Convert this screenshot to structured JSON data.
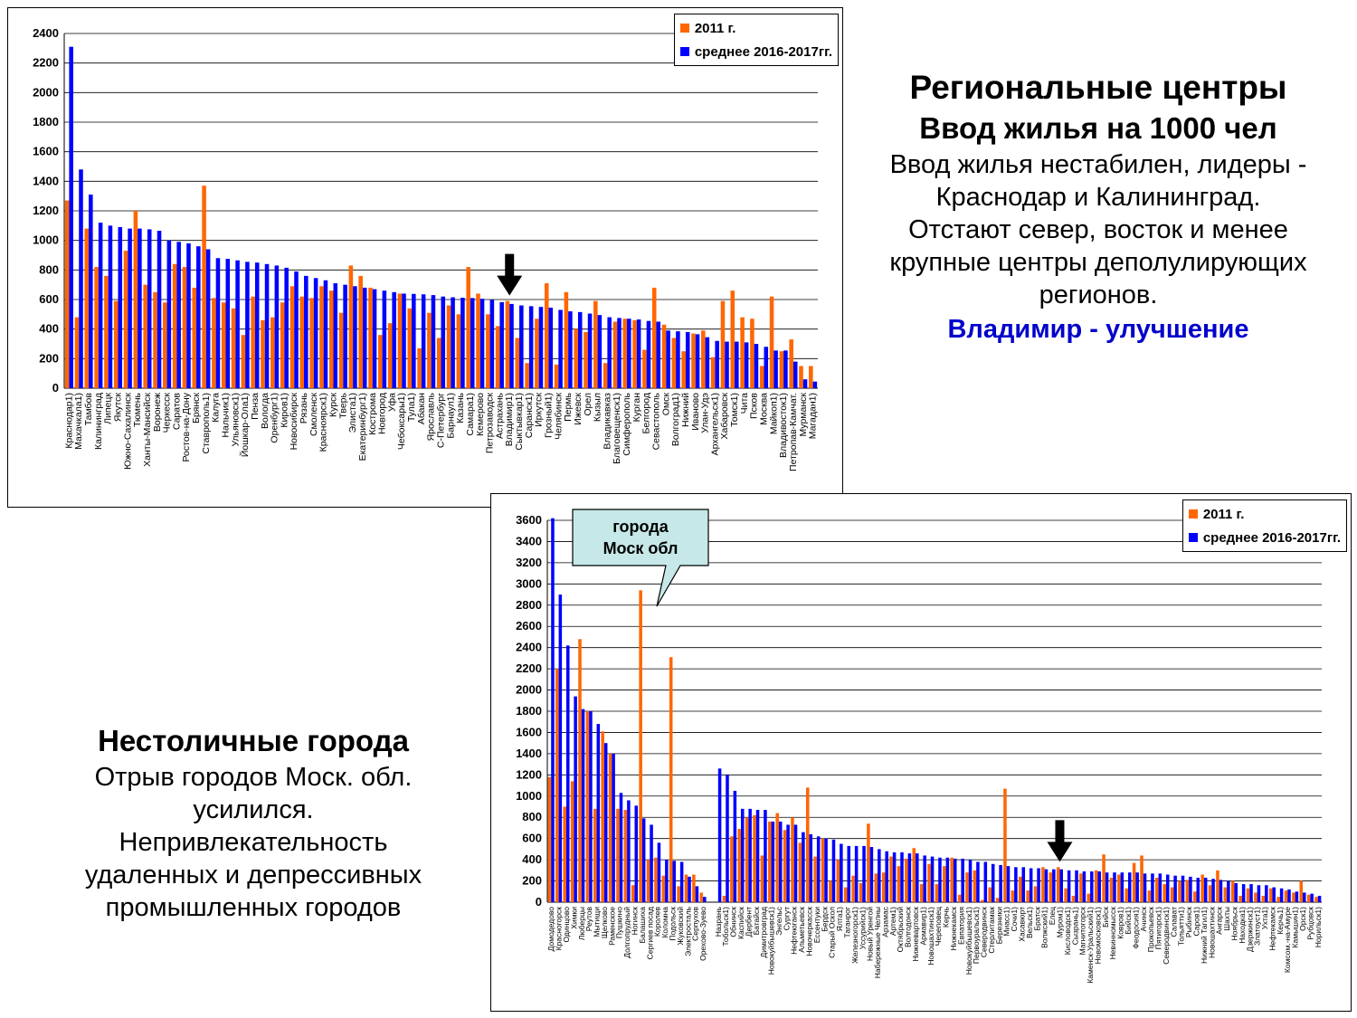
{
  "colors": {
    "series_2011": "#ff6600",
    "series_avg": "#0000ff",
    "callout_fill": "#c6e8e8",
    "highlight_text": "#0000cc"
  },
  "regional_text": {
    "title1": "Региональные центры",
    "title2": "Ввод жилья на 1000 чел",
    "lines": [
      "Ввод жилья нестабилен, лидеры -",
      "Краснодар и Калининград.",
      "Отстают север, восток и менее",
      "крупные центры деполулирующих",
      "регионов."
    ],
    "highlight": "Владимир - улучшение"
  },
  "noncapital_text": {
    "title": "Нестоличные города",
    "lines": [
      "Отрыв городов Моск. обл.",
      "усилился.",
      "Непривлекательность",
      "удаленных и депрессивных",
      "промышленных городов"
    ]
  },
  "callout": {
    "lines": [
      "города",
      "Моск обл"
    ]
  },
  "chart_data": [
    {
      "type": "bar",
      "categories": [
        "Краснодар1)",
        "Махачкала1)",
        "Тамбов",
        "Калининград",
        "Липецк",
        "Якутск",
        "Южно-Сахалинск",
        "Тюмень",
        "Ханты-Мансийск",
        "Воронеж",
        "Черкесск",
        "Саратов",
        "Ростов-на-Дону",
        "Брянск",
        "Ставрополь1)",
        "Калуга",
        "Нальчик1)",
        "Ульяновск1)",
        "Йошкар-Ола1)",
        "Пенза",
        "Вологда",
        "Оренбург1)",
        "Киров1)",
        "Новосибирск",
        "Рязань",
        "Смоленск",
        "Красноярск1)",
        "Курск",
        "Тверь",
        "Элиста1)",
        "Екатеринбург1)",
        "Кострома",
        "Новгород",
        "Уфа",
        "Чебоксары1)",
        "Тула1)",
        "Абакан",
        "Ярославль",
        "С-Петербург",
        "Барнаул1)",
        "Казань",
        "Самара1)",
        "Кемерово",
        "Петрозаводск",
        "Астрахань",
        "Владимир1)",
        "Сыктывкар1)",
        "Саранск1)",
        "Иркутск",
        "Грозный1)",
        "Челябинск",
        "Пермь",
        "Ижевск",
        "Орел",
        "Кызыл",
        "Владикавказ",
        "Благовещенск1)",
        "Симферополь",
        "Курган",
        "Белгород",
        "Севастополь",
        "Омск",
        "Волгоград1)",
        "Нижний",
        "Иваново",
        "Улан-Удэ",
        "Архангельск1)",
        "Хабаровск",
        "Томск1)",
        "Чита",
        "Псков",
        "Москва",
        "Майкоп1)",
        "Владивосток1)",
        "Петропав-Камчат.",
        "Мурманск",
        "Магадан1)"
      ],
      "series": [
        {
          "name": "2011 г.",
          "values": [
            1270,
            480,
            1080,
            820,
            760,
            590,
            930,
            1200,
            700,
            650,
            580,
            840,
            820,
            680,
            1370,
            610,
            580,
            540,
            360,
            620,
            460,
            480,
            580,
            690,
            620,
            610,
            690,
            660,
            510,
            830,
            760,
            680,
            360,
            440,
            640,
            540,
            270,
            510,
            340,
            560,
            500,
            820,
            640,
            500,
            420,
            590,
            340,
            170,
            470,
            710,
            160,
            650,
            400,
            380,
            590,
            170,
            450,
            470,
            460,
            260,
            680,
            430,
            340,
            250,
            370,
            390,
            210,
            590,
            660,
            480,
            470,
            150,
            620,
            250,
            330,
            150,
            150
          ],
          "dash": [
            "",
            "",
            "",
            "",
            "",
            "",
            "",
            "",
            "",
            "",
            "",
            "",
            "",
            "",
            "",
            "",
            "",
            "",
            "",
            "",
            "",
            "",
            "",
            "",
            "",
            "",
            "",
            "",
            "",
            "",
            "",
            "",
            "",
            "",
            "",
            "",
            "",
            "",
            "",
            "",
            "",
            "",
            "",
            "",
            "",
            "",
            "",
            "",
            "",
            "",
            "",
            "",
            "",
            "",
            "",
            "",
            "",
            "",
            "",
            "",
            "",
            "",
            "",
            "",
            "",
            "",
            "",
            "",
            "",
            "",
            "",
            "",
            "",
            "",
            "",
            "",
            ""
          ]
        },
        {
          "name": "среднее 2016-2017гг.",
          "values": [
            2310,
            1480,
            1310,
            1120,
            1100,
            1090,
            1080,
            1080,
            1075,
            1065,
            1000,
            990,
            980,
            960,
            940,
            880,
            875,
            865,
            855,
            850,
            840,
            830,
            815,
            790,
            760,
            745,
            730,
            710,
            700,
            690,
            680,
            670,
            660,
            650,
            640,
            638,
            635,
            630,
            620,
            615,
            612,
            610,
            605,
            598,
            582,
            570,
            560,
            555,
            550,
            545,
            530,
            520,
            515,
            505,
            495,
            480,
            475,
            470,
            465,
            455,
            450,
            390,
            385,
            380,
            365,
            345,
            320,
            315,
            315,
            310,
            300,
            280,
            255,
            255,
            180,
            60,
            45
          ]
        }
      ],
      "ylim": [
        0,
        2400
      ],
      "yticks": [
        0,
        200,
        400,
        600,
        800,
        1000,
        1200,
        1400,
        1600,
        1800,
        2000,
        2200,
        2400
      ],
      "legend": "top-right",
      "annotation": "arrow-down-at-Владимир1)"
    },
    {
      "type": "bar",
      "categories": [
        "Домодедово",
        "Красногорск",
        "Одинцово",
        "Химки",
        "Люберцы",
        "Реутов",
        "Мытищи",
        "Щелково",
        "Раменское",
        "Пушкино",
        "Долгопрудный",
        "Ногинск",
        "Балашиха",
        "Сергиев посад",
        "Королев",
        "Коломна",
        "Подольск",
        "Жуковский",
        "Электросталь",
        "Серпухов",
        "Орехово-Зуево",
        "",
        "Назрань",
        "Тобольск1)",
        "Обнинск",
        "Каспийск",
        "Дербент",
        "Батайск",
        "Димитровград",
        "Новокуйбышевск1)",
        "Энгельс",
        "Сургут",
        "Нефтеюганск",
        "Альметьевск",
        "Новочеркасск",
        "Ессентуки",
        "Бердск",
        "Старый Оскол",
        "Ялта1)",
        "Таганрог",
        "Железногорск1)",
        "Уссурийск1)",
        "Новый Уренгой",
        "Набережные Челны",
        "Арзамас",
        "Артем1)",
        "Октябрьский",
        "Волгодонск",
        "Нижневартовск",
        "Армавир1)",
        "Новошахтинск1)",
        "Череповец",
        "Керчь",
        "Нижнекамск",
        "Евпатория",
        "Новокуйбышевск1)",
        "Первоуральск1)",
        "Северодвинск",
        "Стерлитамак",
        "Березники",
        "Миасс1)",
        "Сочи1)",
        "Хасавюрт",
        "Вельск1)",
        "Братск",
        "Волжский1)",
        "Елец",
        "Муром1)",
        "Кисловодск1)",
        "Сызрань1)",
        "Магнитогорск",
        "Каменск-Уральский1)",
        "Новомосковск1)",
        "Бийск",
        "Невинномысск",
        "Ковров1)",
        "Бийск1)",
        "Феодосия1)",
        "Ачинск",
        "Прокопьевск",
        "Пятигорск1)",
        "Северодвинск1)",
        "Салават",
        "Тольятти1)",
        "Рыбинск",
        "Саров1)",
        "Нижний Тагил1)",
        "Новошахтинск",
        "Ангарск",
        "Шахты",
        "Ноябрьск",
        "Находка1)",
        "Дзержинск1)",
        "Златоуст1)",
        "Ухта1)",
        "Нефтекамск",
        "Керчь1)",
        "Комсом.-на-Амуре",
        "Камышин1)",
        "Орск1)",
        "Рубцовск",
        "Норильск1)"
      ],
      "series": [
        {
          "name": "2011 г.",
          "values": [
            1180,
            2200,
            900,
            1140,
            2480,
            1800,
            880,
            1610,
            1400,
            880,
            870,
            160,
            2940,
            400,
            420,
            250,
            2310,
            150,
            260,
            260,
            90,
            0,
            0,
            60,
            620,
            690,
            800,
            820,
            440,
            760,
            840,
            680,
            800,
            560,
            1080,
            430,
            600,
            200,
            400,
            140,
            250,
            180,
            740,
            270,
            280,
            430,
            340,
            410,
            510,
            170,
            360,
            170,
            340,
            420,
            70,
            280,
            300,
            20,
            140,
            40,
            1070,
            110,
            240,
            110,
            150,
            330,
            280,
            330,
            130,
            60,
            270,
            80,
            300,
            450,
            230,
            260,
            130,
            370,
            440,
            110,
            230,
            170,
            140,
            200,
            210,
            100,
            260,
            160,
            300,
            140,
            200,
            60,
            130,
            90,
            60,
            130,
            50,
            110,
            90,
            200,
            70,
            50
          ]
        },
        {
          "name": "среднее 2016-2017гг.",
          "values": [
            3620,
            2900,
            2420,
            1940,
            1820,
            1800,
            1680,
            1500,
            1400,
            1030,
            960,
            910,
            790,
            730,
            560,
            400,
            390,
            380,
            240,
            150,
            50,
            0,
            1260,
            1200,
            1050,
            880,
            880,
            870,
            870,
            760,
            760,
            730,
            730,
            660,
            640,
            620,
            600,
            590,
            550,
            530,
            530,
            530,
            520,
            500,
            480,
            470,
            470,
            460,
            460,
            440,
            430,
            420,
            420,
            410,
            410,
            400,
            380,
            380,
            360,
            350,
            340,
            330,
            330,
            320,
            320,
            310,
            310,
            310,
            300,
            300,
            290,
            290,
            290,
            280,
            280,
            280,
            280,
            280,
            270,
            270,
            270,
            260,
            250,
            250,
            240,
            230,
            230,
            220,
            210,
            200,
            180,
            170,
            170,
            160,
            160,
            140,
            130,
            120,
            100,
            90,
            80,
            60
          ]
        }
      ],
      "ylim": [
        0,
        3600
      ],
      "yticks": [
        0,
        200,
        400,
        600,
        800,
        1000,
        1200,
        1400,
        1600,
        1800,
        2000,
        2200,
        2400,
        2600,
        2800,
        3000,
        3200,
        3400,
        3600
      ],
      "legend": "top-right",
      "annotation": "arrow-down-at-Муром1)"
    }
  ]
}
